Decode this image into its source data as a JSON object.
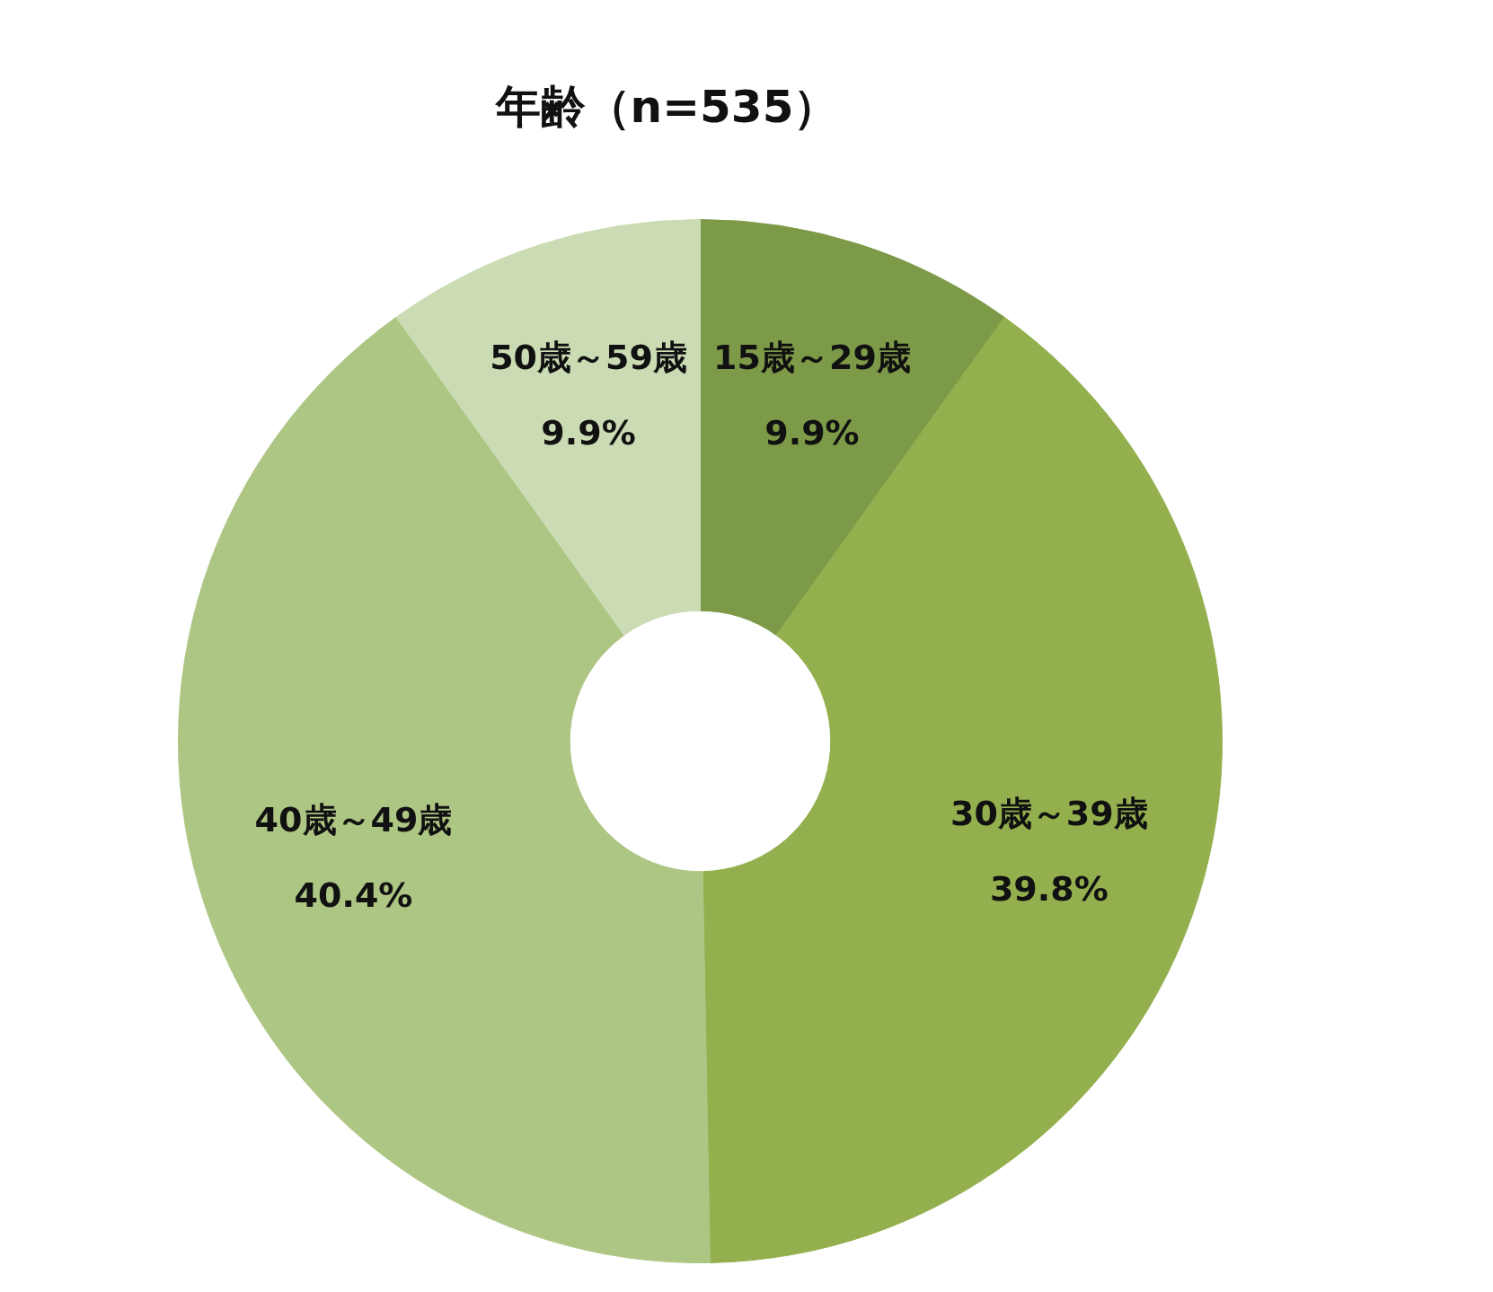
{
  "chart_data": {
    "type": "donut",
    "title": "年齢（n=535）",
    "categories": [
      "15歳～29歳",
      "30歳～39歳",
      "40歳～49歳",
      "50歳～59歳"
    ],
    "values": [
      9.9,
      39.8,
      40.4,
      9.9
    ],
    "colors": [
      "#7d9a48",
      "#94b04e",
      "#aec684",
      "#cbdcb4"
    ],
    "value_labels": [
      "9.9%",
      "39.8%",
      "40.4%",
      "9.9%"
    ]
  }
}
